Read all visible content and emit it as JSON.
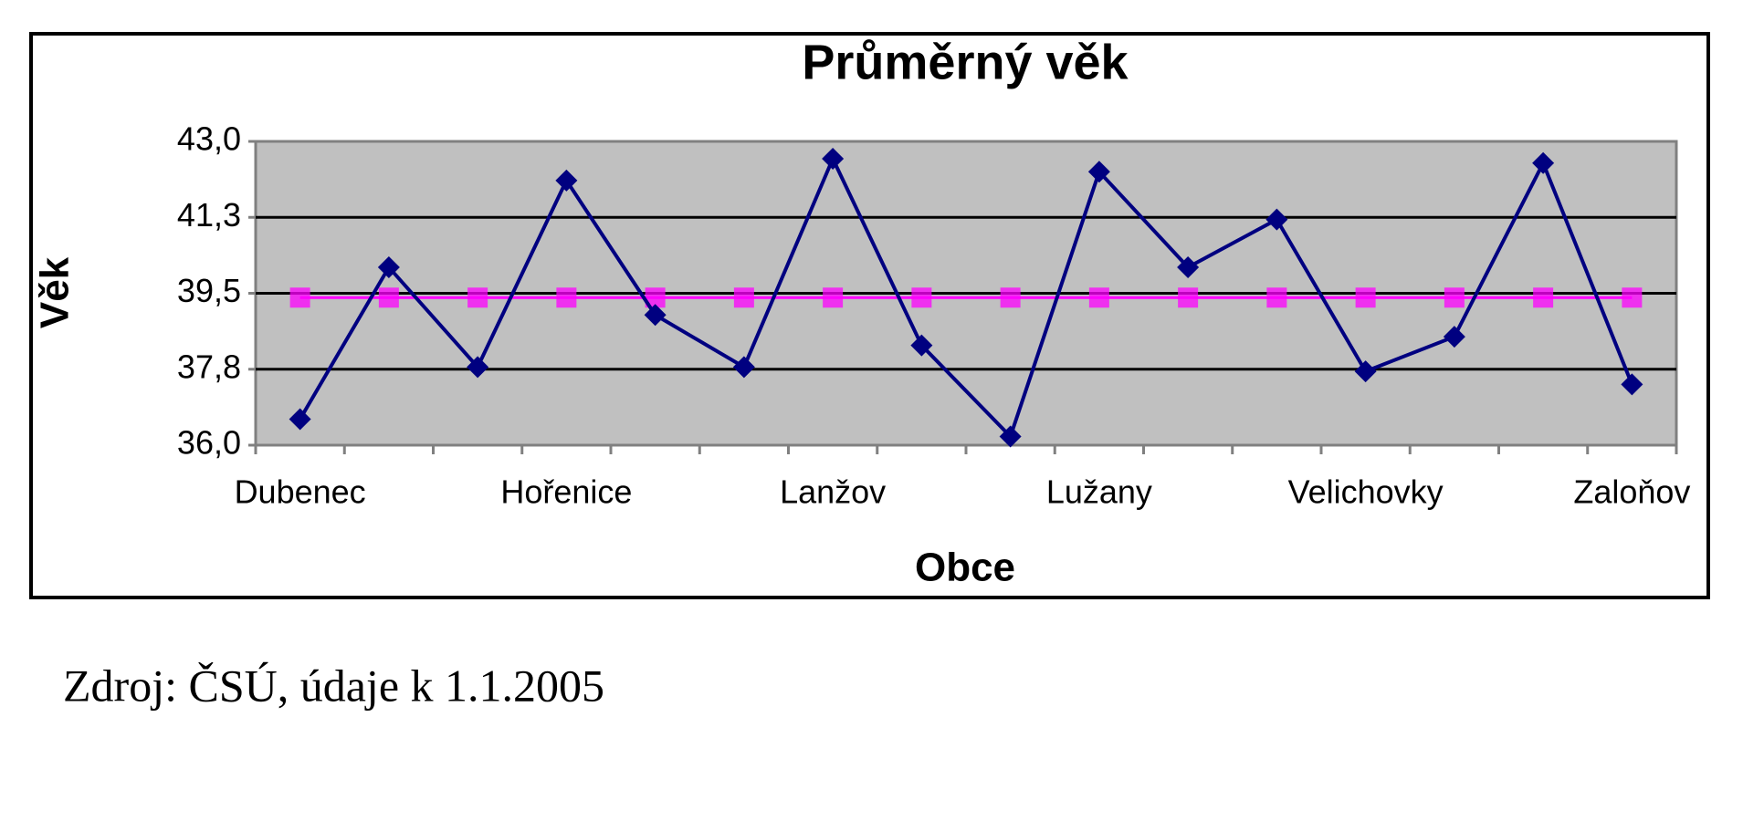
{
  "chart_data": {
    "type": "line",
    "title": "Průměrný věk",
    "x_label": "Obce",
    "y_label": "Věk",
    "categories": [
      "Dubenec",
      null,
      null,
      "Hořenice",
      null,
      null,
      "Lanžov",
      null,
      null,
      "Lužany",
      null,
      null,
      "Velichovky",
      null,
      null,
      "Zaloňov"
    ],
    "series": [
      {
        "color": "#000080",
        "marker": "diamond",
        "values": [
          36.6,
          40.1,
          37.8,
          42.1,
          39.0,
          37.8,
          42.6,
          38.3,
          36.2,
          42.3,
          40.1,
          41.2,
          37.7,
          38.5,
          42.5,
          37.4
        ]
      },
      {
        "color": "#ff00ff",
        "marker": "square",
        "values": [
          39.4,
          39.4,
          39.4,
          39.4,
          39.4,
          39.4,
          39.4,
          39.4,
          39.4,
          39.4,
          39.4,
          39.4,
          39.4,
          39.4,
          39.4,
          39.4
        ]
      }
    ],
    "ylim": [
      36,
      43
    ],
    "yticks": [
      {
        "value": 36,
        "label": "36,0"
      },
      {
        "value": 37.75,
        "label": "37,8"
      },
      {
        "value": 39.5,
        "label": "39,5"
      },
      {
        "value": 41.25,
        "label": "41,3"
      },
      {
        "value": 43,
        "label": "43,0"
      }
    ],
    "grid": true
  },
  "source": "Zdroj: ČSÚ, údaje k 1.1.2005"
}
